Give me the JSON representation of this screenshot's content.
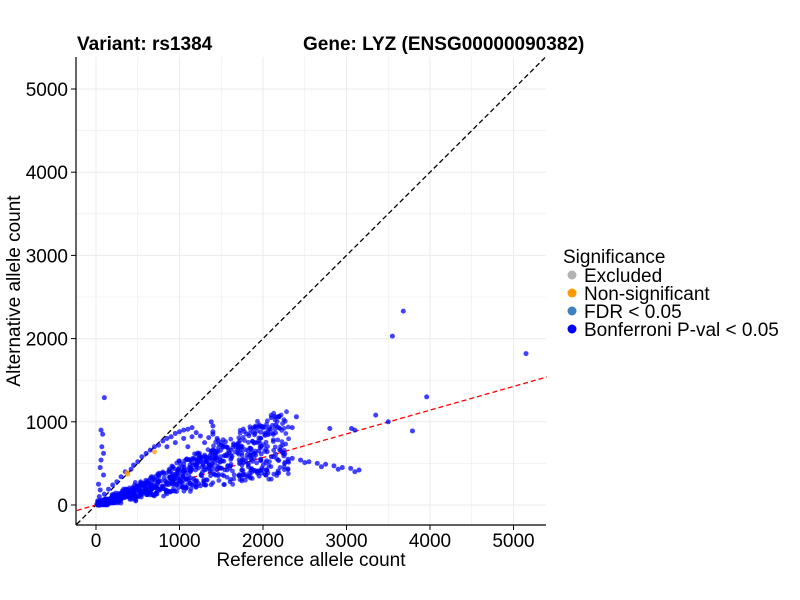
{
  "chart_data": {
    "type": "scatter",
    "titles": [
      "Variant: rs1384",
      "Gene: LYZ (ENSG00000090382)"
    ],
    "xlabel": "Reference allele count",
    "ylabel": "Alternative allele count",
    "xlim": [
      -230,
      5400
    ],
    "ylim": [
      -230,
      5400
    ],
    "x_ticks": [
      0,
      1000,
      2000,
      3000,
      4000,
      5000
    ],
    "y_ticks": [
      0,
      1000,
      2000,
      3000,
      4000,
      5000
    ],
    "x_tick_labels": [
      "0",
      "1000",
      "2000",
      "3000",
      "4000",
      "5000"
    ],
    "y_tick_labels": [
      "0",
      "1000",
      "2000",
      "3000",
      "4000",
      "5000"
    ],
    "grid": true,
    "reference_lines": [
      {
        "style": "dashed",
        "color": "#000000",
        "slope": 1,
        "intercept": 0
      },
      {
        "style": "dashed",
        "color": "#ff0000",
        "slope": 0.285,
        "intercept": 0
      }
    ],
    "legend": {
      "title": "Significance",
      "placement": "right",
      "items": [
        {
          "label": "Excluded",
          "color": "#b3b3b3"
        },
        {
          "label": "Non-significant",
          "color": "#ff9900"
        },
        {
          "label": "FDR < 0.05",
          "color": "#3d7fbf"
        },
        {
          "label": "Bonferroni P-val < 0.05",
          "color": "#0000ff"
        }
      ]
    },
    "series": [
      {
        "name": "Non-significant",
        "color": "#ff9900",
        "points": [
          [
            370,
            390
          ],
          [
            700,
            640
          ],
          [
            380,
            370
          ]
        ]
      },
      {
        "name": "Bonferroni P-val < 0.05",
        "color": "#0000ff",
        "points": [
          [
            3680,
            2330
          ],
          [
            3550,
            2030
          ],
          [
            5150,
            1820
          ],
          [
            100,
            1290
          ],
          [
            3960,
            1300
          ],
          [
            2100,
            1050
          ],
          [
            2400,
            1060
          ],
          [
            3350,
            1080
          ],
          [
            3500,
            1000
          ],
          [
            3790,
            890
          ],
          [
            3100,
            900
          ],
          [
            1400,
            950
          ],
          [
            1400,
            850
          ],
          [
            1380,
            1000
          ],
          [
            1400,
            880
          ],
          [
            2000,
            940
          ],
          [
            2350,
            930
          ],
          [
            2800,
            920
          ],
          [
            3060,
            920
          ],
          [
            2150,
            960
          ],
          [
            60,
            900
          ],
          [
            80,
            850
          ],
          [
            70,
            700
          ],
          [
            90,
            620
          ],
          [
            60,
            540
          ],
          [
            50,
            450
          ],
          [
            90,
            360
          ],
          [
            30,
            250
          ],
          [
            50,
            180
          ],
          [
            40,
            100
          ],
          [
            20,
            50
          ],
          [
            60,
            20
          ],
          [
            100,
            130
          ],
          [
            10,
            10
          ],
          [
            150,
            190
          ],
          [
            200,
            240
          ],
          [
            250,
            280
          ],
          [
            300,
            340
          ],
          [
            350,
            400
          ],
          [
            420,
            430
          ],
          [
            450,
            480
          ],
          [
            500,
            520
          ],
          [
            550,
            580
          ],
          [
            600,
            620
          ],
          [
            650,
            660
          ],
          [
            700,
            700
          ],
          [
            750,
            720
          ],
          [
            800,
            770
          ],
          [
            850,
            800
          ],
          [
            900,
            820
          ],
          [
            950,
            860
          ],
          [
            1000,
            880
          ],
          [
            1050,
            900
          ],
          [
            1100,
            910
          ],
          [
            1150,
            930
          ],
          [
            1200,
            870
          ],
          [
            850,
            700
          ],
          [
            950,
            750
          ],
          [
            1050,
            800
          ],
          [
            1150,
            820
          ],
          [
            1250,
            830
          ],
          [
            1350,
            810
          ],
          [
            1450,
            800
          ],
          [
            1550,
            760
          ],
          [
            1650,
            720
          ],
          [
            1750,
            700
          ],
          [
            1850,
            680
          ],
          [
            1950,
            650
          ],
          [
            2050,
            640
          ],
          [
            2150,
            610
          ],
          [
            2250,
            590
          ],
          [
            2350,
            560
          ],
          [
            2450,
            540
          ],
          [
            2550,
            520
          ],
          [
            2650,
            500
          ],
          [
            2750,
            490
          ],
          [
            2850,
            470
          ],
          [
            2950,
            450
          ],
          [
            3050,
            440
          ],
          [
            3150,
            420
          ],
          [
            1100,
            700
          ],
          [
            1300,
            750
          ],
          [
            1500,
            720
          ],
          [
            1700,
            660
          ],
          [
            1900,
            620
          ],
          [
            2100,
            580
          ],
          [
            2300,
            550
          ],
          [
            2500,
            510
          ],
          [
            2700,
            460
          ],
          [
            2900,
            430
          ],
          [
            3100,
            400
          ]
        ]
      }
    ]
  }
}
